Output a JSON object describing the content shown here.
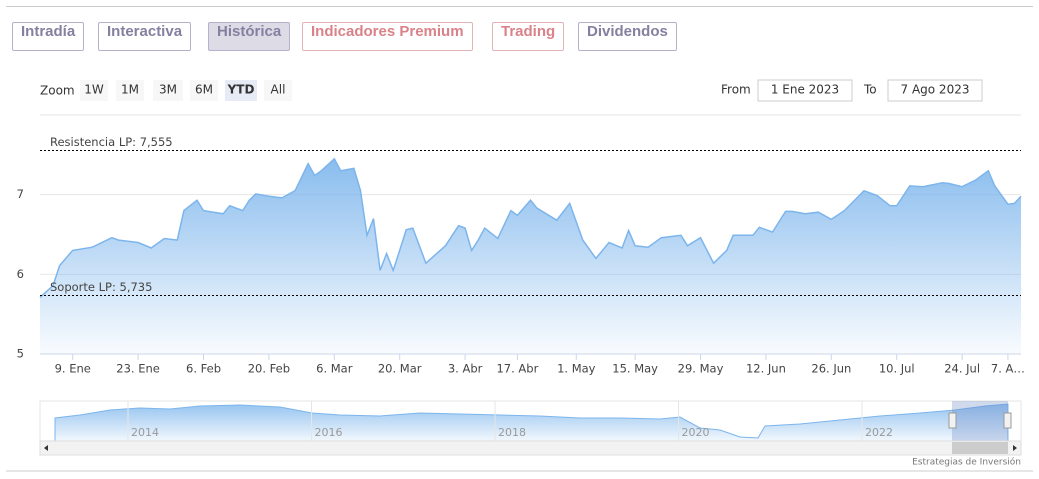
{
  "tabs": [
    "Intradía",
    "Interactiva",
    "Histórica",
    "Indicadores Premium",
    "Trading",
    "Dividendos"
  ],
  "zoom": {
    "label": "Zoom",
    "buttons": [
      "1W",
      "1M",
      "3M",
      "6M",
      "YTD",
      "All"
    ]
  },
  "range": {
    "from_label": "From",
    "from": "1 Ene 2023",
    "to_label": "To",
    "to": "7 Ago 2023"
  },
  "chart_data": {
    "type": "area",
    "color": "#7cb5ec",
    "grid": true,
    "x": [
      0,
      2,
      3,
      5,
      8,
      11,
      12,
      15,
      17,
      19,
      21,
      22,
      24,
      25,
      28,
      29,
      31,
      32,
      33,
      35,
      37,
      39,
      41,
      42,
      43,
      45,
      46,
      48,
      49,
      50,
      51,
      52,
      53,
      54,
      55,
      56,
      57,
      59,
      62,
      64,
      65,
      66,
      67,
      68,
      70,
      72,
      73,
      75,
      76,
      77,
      79,
      81,
      83,
      85,
      87,
      89,
      90,
      91,
      93,
      95,
      98,
      99,
      101,
      103,
      105,
      106,
      109,
      110,
      112,
      114,
      115,
      117,
      119,
      121,
      123,
      126,
      128,
      130,
      131,
      133,
      135,
      138,
      139,
      141,
      143,
      145,
      146,
      148,
      149,
      150
    ],
    "values": [
      5.71,
      5.86,
      6.11,
      6.3,
      6.34,
      6.46,
      6.43,
      6.4,
      6.33,
      6.45,
      6.43,
      6.8,
      6.93,
      6.8,
      6.76,
      6.86,
      6.8,
      6.93,
      7.01,
      6.98,
      6.96,
      7.05,
      7.39,
      7.24,
      7.3,
      7.45,
      7.3,
      7.33,
      7.05,
      6.49,
      6.7,
      6.05,
      6.26,
      6.05,
      6.3,
      6.56,
      6.58,
      6.14,
      6.36,
      6.61,
      6.58,
      6.3,
      6.43,
      6.58,
      6.45,
      6.8,
      6.74,
      6.93,
      6.83,
      6.78,
      6.68,
      6.89,
      6.43,
      6.2,
      6.4,
      6.33,
      6.55,
      6.36,
      6.34,
      6.46,
      6.49,
      6.36,
      6.46,
      6.14,
      6.3,
      6.49,
      6.49,
      6.59,
      6.53,
      6.79,
      6.79,
      6.76,
      6.78,
      6.69,
      6.8,
      7.05,
      6.99,
      6.86,
      6.86,
      7.11,
      7.1,
      7.15,
      7.14,
      7.1,
      7.18,
      7.3,
      7.11,
      6.88,
      6.89,
      6.98
    ],
    "xlim": [
      0,
      150
    ],
    "xticks": [
      {
        "value": 5,
        "label": "9. Ene"
      },
      {
        "value": 15,
        "label": "23. Ene"
      },
      {
        "value": 25,
        "label": "6. Feb"
      },
      {
        "value": 35,
        "label": "20. Feb"
      },
      {
        "value": 45,
        "label": "6. Mar"
      },
      {
        "value": 55,
        "label": "20. Mar"
      },
      {
        "value": 65,
        "label": "3. Abr"
      },
      {
        "value": 73,
        "label": "17. Abr"
      },
      {
        "value": 82,
        "label": "1. May"
      },
      {
        "value": 91,
        "label": "15. May"
      },
      {
        "value": 101,
        "label": "29. May"
      },
      {
        "value": 111,
        "label": "12. Jun"
      },
      {
        "value": 121,
        "label": "26. Jun"
      },
      {
        "value": 131,
        "label": "10. Jul"
      },
      {
        "value": 141,
        "label": "24. Jul"
      },
      {
        "value": 148,
        "label": "7. A…"
      }
    ],
    "ylim": [
      5,
      8
    ],
    "yticks": [
      5,
      6,
      7
    ],
    "levels": [
      {
        "label": "Resistencia LP: 7,555",
        "value": 7.555
      },
      {
        "label": "Soporte LP: 5,735",
        "value": 5.735
      }
    ]
  },
  "navigator": {
    "years": [
      "2014",
      "2016",
      "2018",
      "2020",
      "2022"
    ]
  },
  "credit": "Estrategias de Inversión"
}
